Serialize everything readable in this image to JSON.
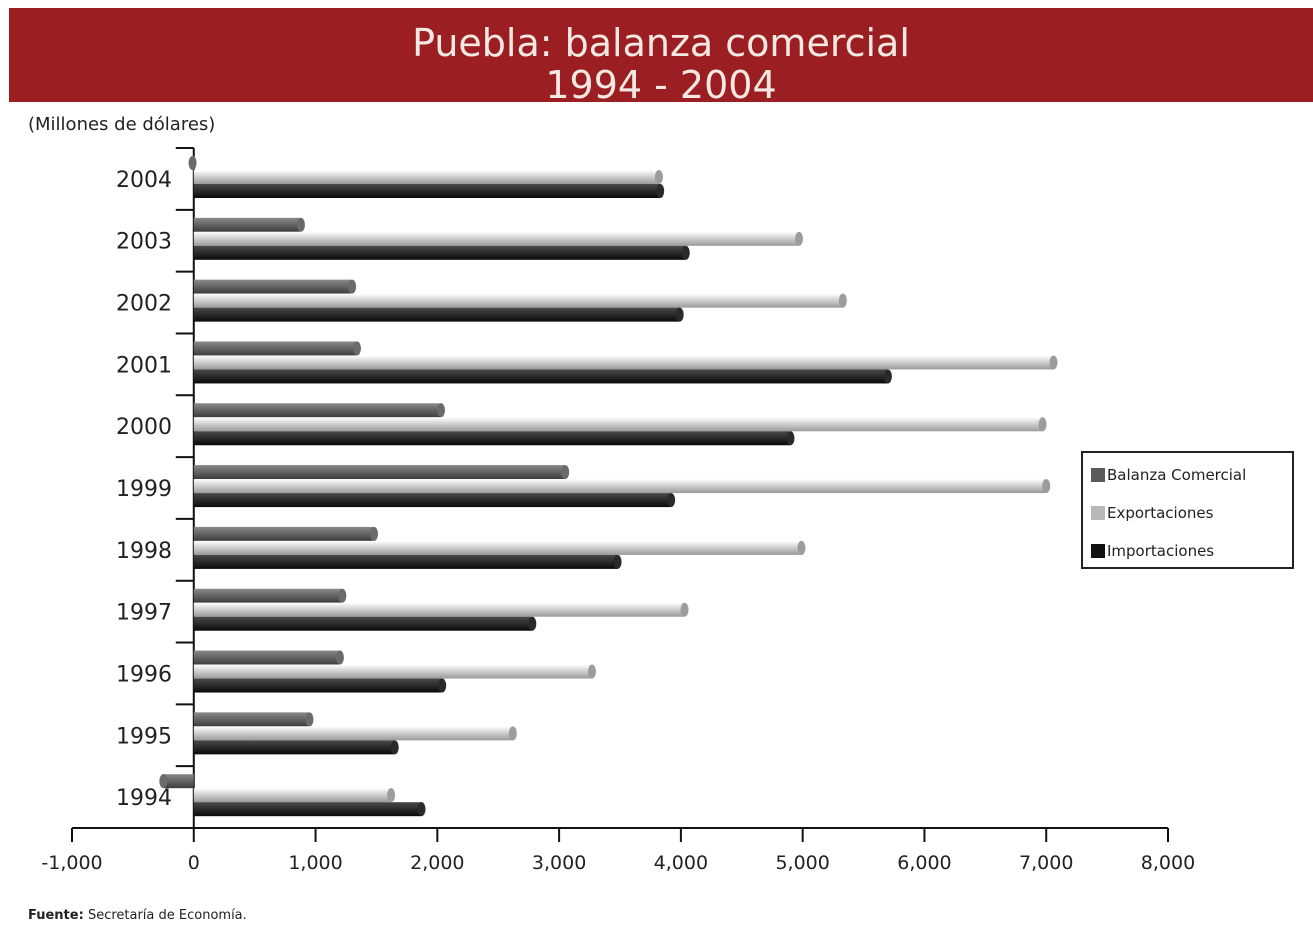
{
  "header": {
    "title_line1": "Puebla: balanza comercial",
    "title_line2": "1994 - 2004"
  },
  "units_label": "(Millones de dólares)",
  "source": {
    "label": "Fuente:",
    "text": "Secretaría de Economía."
  },
  "colors": {
    "banner": "#9b1f22",
    "balanza": "#5a5a5a",
    "exportaciones": "#b8b8b8",
    "importaciones": "#1c1c1c"
  },
  "chart_data": {
    "type": "bar",
    "orientation": "horizontal",
    "title": "Puebla: balanza comercial 1994 - 2004",
    "xlabel": "",
    "ylabel": "(Millones de dólares)",
    "xlim": [
      -1000,
      8000
    ],
    "xticks": [
      "-1,000",
      "0",
      "1,000",
      "2,000",
      "3,000",
      "4,000",
      "5,000",
      "6,000",
      "7,000",
      "8,000"
    ],
    "tick_values": [
      -1000,
      0,
      1000,
      2000,
      3000,
      4000,
      5000,
      6000,
      7000,
      8000
    ],
    "categories": [
      "1994",
      "1995",
      "1996",
      "1997",
      "1998",
      "1999",
      "2000",
      "2001",
      "2002",
      "2003",
      "2004"
    ],
    "legend_position": "right",
    "series": [
      {
        "name": "Balanza Comercial",
        "values": [
          -250,
          950,
          1200,
          1220,
          1480,
          3050,
          2030,
          1340,
          1300,
          880,
          -10
        ]
      },
      {
        "name": "Exportaciones",
        "values": [
          1620,
          2620,
          3270,
          4030,
          4990,
          7000,
          6970,
          7060,
          5330,
          4970,
          3820
        ]
      },
      {
        "name": "Importaciones",
        "values": [
          1870,
          1650,
          2040,
          2780,
          3480,
          3920,
          4900,
          5700,
          3990,
          4040,
          3830
        ]
      }
    ]
  }
}
